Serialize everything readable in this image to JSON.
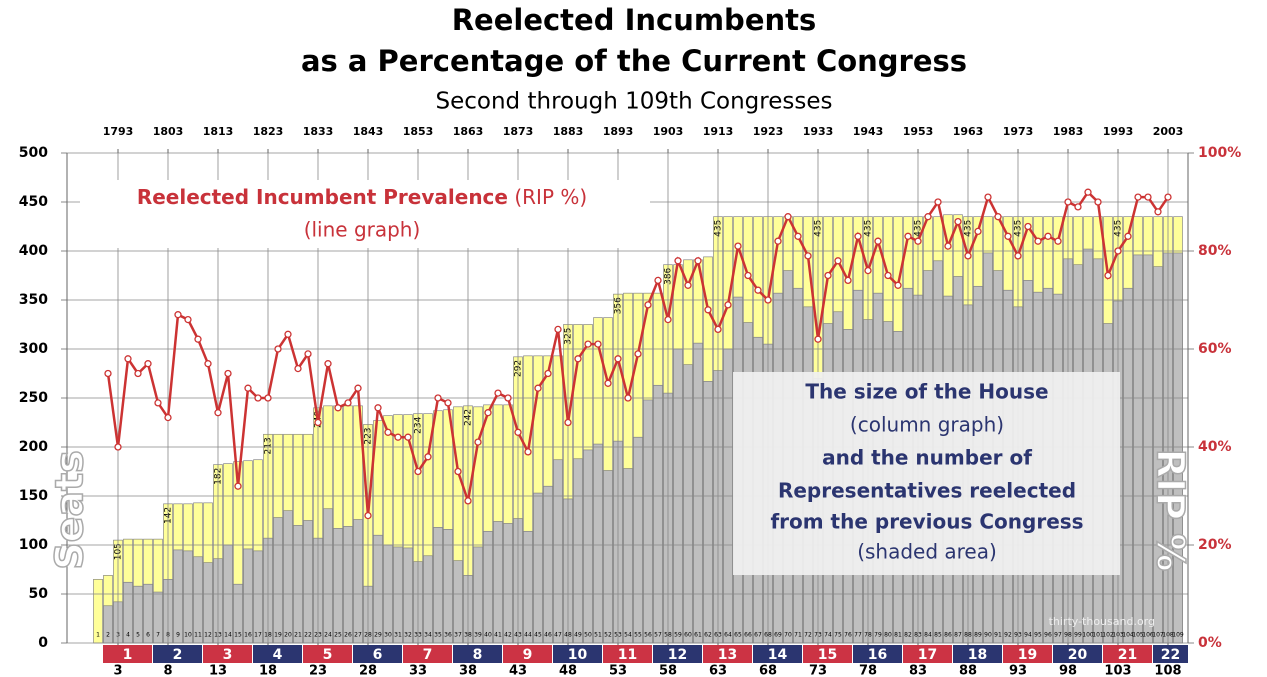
{
  "chart_data": {
    "type": "bar_line",
    "title": [
      "Reelected Incumbents",
      "as a Percentage of the Current Congress"
    ],
    "subtitle": "Second through 109th Congresses",
    "y_label": "Seats",
    "y2_label": "RIP %",
    "annotations": {
      "line_title_bold": "Reelected Incumbent Prevalence",
      "line_title_rest": "(RIP %)",
      "line_note": "(line graph)",
      "box": [
        "The size of the House",
        "(column graph)",
        "and the number of",
        "Representatives reelected",
        "from the previous Congress",
        "(shaded area)"
      ],
      "credit": "thirty-thousand.org"
    },
    "x": [
      1,
      2,
      3,
      4,
      5,
      6,
      7,
      8,
      9,
      10,
      11,
      12,
      13,
      14,
      15,
      16,
      17,
      18,
      19,
      20,
      21,
      22,
      23,
      24,
      25,
      26,
      27,
      28,
      29,
      30,
      31,
      32,
      33,
      34,
      35,
      36,
      37,
      38,
      39,
      40,
      41,
      42,
      43,
      44,
      45,
      46,
      47,
      48,
      49,
      50,
      51,
      52,
      53,
      54,
      55,
      56,
      57,
      58,
      59,
      60,
      61,
      62,
      63,
      64,
      65,
      66,
      67,
      68,
      69,
      70,
      71,
      72,
      73,
      74,
      75,
      76,
      77,
      78,
      79,
      80,
      81,
      82,
      83,
      84,
      85,
      86,
      87,
      88,
      89,
      90,
      91,
      92,
      93,
      94,
      95,
      96,
      97,
      98,
      99,
      100,
      101,
      102,
      103,
      104,
      105,
      106,
      107,
      108,
      109
    ],
    "xticks": [
      3,
      8,
      13,
      18,
      23,
      28,
      33,
      38,
      43,
      48,
      53,
      58,
      63,
      68,
      73,
      78,
      83,
      88,
      93,
      98,
      103,
      108
    ],
    "x2ticks": [
      {
        "value": 3,
        "label": "1793"
      },
      {
        "value": 8,
        "label": "1803"
      },
      {
        "value": 13,
        "label": "1813"
      },
      {
        "value": 18,
        "label": "1823"
      },
      {
        "value": 23,
        "label": "1833"
      },
      {
        "value": 28,
        "label": "1843"
      },
      {
        "value": 33,
        "label": "1853"
      },
      {
        "value": 38,
        "label": "1863"
      },
      {
        "value": 43,
        "label": "1873"
      },
      {
        "value": 48,
        "label": "1883"
      },
      {
        "value": 53,
        "label": "1893"
      },
      {
        "value": 58,
        "label": "1903"
      },
      {
        "value": 63,
        "label": "1913"
      },
      {
        "value": 68,
        "label": "1923"
      },
      {
        "value": 73,
        "label": "1933"
      },
      {
        "value": 78,
        "label": "1943"
      },
      {
        "value": 83,
        "label": "1953"
      },
      {
        "value": 88,
        "label": "1963"
      },
      {
        "value": 93,
        "label": "1973"
      },
      {
        "value": 98,
        "label": "1983"
      },
      {
        "value": 103,
        "label": "1993"
      },
      {
        "value": 108,
        "label": "2003"
      }
    ],
    "groups": [
      1,
      2,
      3,
      4,
      5,
      6,
      7,
      8,
      9,
      10,
      11,
      12,
      13,
      14,
      15,
      16,
      17,
      18,
      19,
      20,
      21,
      22
    ],
    "group_colors": [
      "#cc3344",
      "#2b3570"
    ],
    "ylim": [
      0,
      500
    ],
    "yticks": [
      0,
      50,
      100,
      150,
      200,
      250,
      300,
      350,
      400,
      450,
      500
    ],
    "y2lim": [
      0,
      100
    ],
    "y2ticks": [
      {
        "value": 0,
        "label": "0%"
      },
      {
        "value": 20,
        "label": "20%"
      },
      {
        "value": 40,
        "label": "40%"
      },
      {
        "value": 60,
        "label": "60%"
      },
      {
        "value": 80,
        "label": "80%"
      },
      {
        "value": 100,
        "label": "100%"
      }
    ],
    "grid": true,
    "series": [
      {
        "color": "#ffff99",
        "values": [
          65,
          69,
          105,
          106,
          106,
          106,
          106,
          142,
          142,
          142,
          143,
          143,
          182,
          183,
          185,
          186,
          187,
          213,
          213,
          213,
          213,
          213,
          240,
          242,
          242,
          242,
          242,
          223,
          227,
          232,
          233,
          233,
          234,
          234,
          237,
          238,
          241,
          242,
          241,
          243,
          243,
          243,
          292,
          293,
          293,
          293,
          293,
          325,
          325,
          325,
          332,
          332,
          356,
          357,
          357,
          357,
          357,
          386,
          386,
          391,
          391,
          394,
          435,
          435,
          435,
          435,
          435,
          435,
          435,
          435,
          435,
          435,
          435,
          435,
          435,
          435,
          435,
          435,
          435,
          435,
          435,
          435,
          435,
          435,
          435,
          437,
          437,
          435,
          435,
          435,
          435,
          435,
          435,
          435,
          435,
          435,
          435,
          435,
          435,
          435,
          435,
          435,
          435,
          435,
          435,
          435,
          435,
          435,
          435
        ],
        "value_labels": [
          null,
          null,
          "105",
          null,
          null,
          null,
          null,
          "142",
          null,
          null,
          null,
          null,
          "182",
          null,
          null,
          null,
          null,
          "213",
          null,
          null,
          null,
          null,
          "240",
          null,
          null,
          null,
          null,
          "223",
          null,
          null,
          null,
          null,
          "234",
          null,
          null,
          null,
          null,
          "242",
          null,
          null,
          null,
          null,
          "292",
          null,
          null,
          null,
          null,
          "325",
          null,
          null,
          null,
          null,
          "356",
          null,
          null,
          null,
          null,
          "386",
          null,
          null,
          null,
          null,
          "435",
          null,
          null,
          null,
          null,
          null,
          null,
          null,
          null,
          null,
          "435",
          null,
          null,
          null,
          null,
          "435",
          null,
          null,
          null,
          null,
          "435",
          null,
          null,
          null,
          null,
          "435",
          null,
          null,
          null,
          null,
          "435",
          null,
          null,
          null,
          null,
          null,
          null,
          null,
          null,
          null,
          "435",
          null,
          null,
          null,
          null,
          null,
          null
        ]
      },
      {
        "color": "#bfbfbf",
        "values": [
          null,
          38,
          42,
          62,
          58,
          60,
          52,
          65,
          95,
          94,
          88,
          82,
          86,
          100,
          60,
          96,
          94,
          107,
          128,
          135,
          120,
          125,
          107,
          137,
          117,
          119,
          126,
          58,
          110,
          100,
          98,
          97,
          83,
          89,
          118,
          116,
          84,
          69,
          98,
          114,
          124,
          122,
          127,
          114,
          153,
          160,
          187,
          147,
          188,
          197,
          203,
          176,
          206,
          178,
          210,
          248,
          263,
          255,
          300,
          284,
          306,
          267,
          278,
          300,
          353,
          327,
          312,
          305,
          357,
          380,
          362,
          343,
          270,
          326,
          338,
          320,
          360,
          330,
          357,
          328,
          318,
          362,
          355,
          380,
          390,
          354,
          374,
          345,
          364,
          398,
          380,
          360,
          343,
          370,
          358,
          362,
          356,
          392,
          386,
          402,
          392,
          326,
          349,
          362,
          396,
          396,
          384,
          398,
          398
        ]
      },
      {
        "color": "#cc3333",
        "axis": "y2",
        "values": [
          null,
          55,
          40,
          58,
          55,
          57,
          49,
          46,
          67,
          66,
          62,
          57,
          47,
          55,
          32,
          52,
          50,
          50,
          60,
          63,
          56,
          59,
          45,
          57,
          48,
          49,
          52,
          26,
          48,
          43,
          42,
          42,
          35,
          38,
          50,
          49,
          35,
          29,
          41,
          47,
          51,
          50,
          43,
          39,
          52,
          55,
          64,
          45,
          58,
          61,
          61,
          53,
          58,
          50,
          59,
          69,
          74,
          66,
          78,
          73,
          78,
          68,
          64,
          69,
          81,
          75,
          72,
          70,
          82,
          87,
          83,
          79,
          62,
          75,
          78,
          74,
          83,
          76,
          82,
          75,
          73,
          83,
          82,
          87,
          90,
          81,
          86,
          79,
          84,
          91,
          87,
          83,
          79,
          85,
          82,
          83,
          82,
          90,
          89,
          92,
          90,
          75,
          80,
          83,
          91,
          91,
          88,
          91,
          null
        ]
      }
    ]
  }
}
